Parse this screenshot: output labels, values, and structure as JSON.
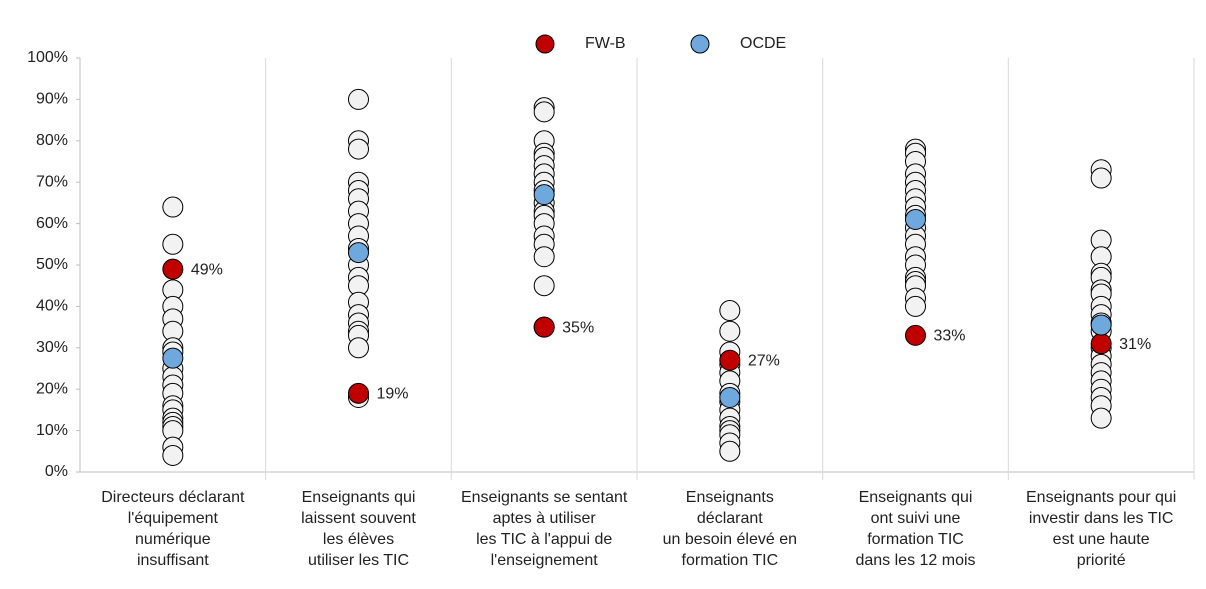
{
  "chart_data": {
    "type": "strip",
    "categories": [
      [
        "Directeurs déclarant",
        "l'équipement",
        "numérique",
        "insuffisant"
      ],
      [
        "Enseignants qui",
        "laissent  souvent",
        "les élèves",
        "utiliser les TIC"
      ],
      [
        "Enseignants se sentant",
        "aptes à utiliser",
        "les TIC à l'appui de",
        "l'enseignement"
      ],
      [
        "Enseignants",
        "déclarant",
        "un besoin élevé en",
        "formation TIC"
      ],
      [
        "Enseignants qui",
        "ont suivi une",
        "formation TIC",
        "dans  les 12 mois"
      ],
      [
        "Enseignants pour qui",
        "investir dans les TIC",
        "est une haute",
        "priorité"
      ]
    ],
    "others": {
      "color": "#f2f2f2",
      "values": [
        [
          64,
          55,
          44,
          40,
          37,
          34,
          30,
          29,
          25,
          23,
          21,
          19,
          16,
          15,
          13,
          12,
          11,
          10,
          6,
          4
        ],
        [
          90,
          80,
          78,
          70,
          68,
          66,
          63,
          60,
          57,
          54,
          50,
          47,
          45,
          41,
          38,
          36,
          34,
          33,
          30,
          18
        ],
        [
          88,
          87,
          80,
          77,
          76,
          74,
          72,
          70,
          68,
          65,
          63,
          62,
          60,
          57,
          55,
          52,
          45,
          35
        ],
        [
          39,
          34,
          29,
          26,
          24,
          22,
          19,
          17,
          15,
          13,
          11,
          10,
          9,
          7,
          5
        ],
        [
          78,
          77,
          75,
          72,
          70,
          68,
          66,
          64,
          62,
          59,
          57,
          55,
          52,
          50,
          47,
          46,
          45,
          42,
          40
        ],
        [
          73,
          71,
          56,
          52,
          48,
          47,
          44,
          43,
          40,
          38,
          36,
          34,
          30,
          28,
          26,
          24,
          22,
          20,
          18,
          16,
          13
        ]
      ]
    },
    "series": [
      {
        "name": "FW-B",
        "color": "#c00000",
        "values": [
          49,
          19,
          35,
          27,
          33,
          31
        ],
        "value_labels": [
          "49%",
          "19%",
          "35%",
          "27%",
          "33%",
          "31%"
        ]
      },
      {
        "name": "OCDE",
        "color": "#6fa8dc",
        "values": [
          27.5,
          53,
          67,
          18,
          61,
          35.5
        ]
      }
    ],
    "ylim": [
      0,
      100
    ],
    "yticks": [
      {
        "value": 0,
        "label": "0%"
      },
      {
        "value": 10,
        "label": "10%"
      },
      {
        "value": 20,
        "label": "20%"
      },
      {
        "value": 30,
        "label": "30%"
      },
      {
        "value": 40,
        "label": "40%"
      },
      {
        "value": 50,
        "label": "50%"
      },
      {
        "value": 60,
        "label": "60%"
      },
      {
        "value": 70,
        "label": "70%"
      },
      {
        "value": 80,
        "label": "80%"
      },
      {
        "value": 90,
        "label": "90%"
      },
      {
        "value": 100,
        "label": "100%"
      }
    ],
    "legend": "top"
  }
}
